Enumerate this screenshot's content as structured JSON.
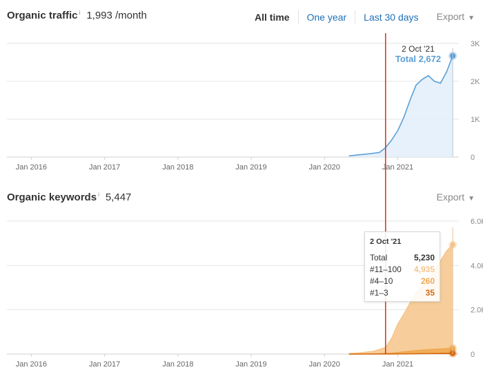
{
  "traffic": {
    "title": "Organic traffic",
    "info": "i",
    "value": "1,993 /month",
    "ranges": [
      "All time",
      "One year",
      "Last 30 days"
    ],
    "active_range": "All time",
    "export_label": "Export",
    "tooltip": {
      "date": "2 Oct '21",
      "label": "Total",
      "value": "2,672"
    }
  },
  "keywords": {
    "title": "Organic keywords",
    "info": "i",
    "value": "5,447",
    "export_label": "Export",
    "tooltip": {
      "date": "2 Oct '21",
      "rows": [
        {
          "label": "Total",
          "value": "5,230"
        },
        {
          "label": "#11–100",
          "value": "4,935"
        },
        {
          "label": "#4–10",
          "value": "260"
        },
        {
          "label": "#1–3",
          "value": "35"
        }
      ]
    }
  },
  "colors": {
    "traffic_line": "#5a9fd6",
    "traffic_fill": "#e3effb",
    "kw_11_100": "#f6c58a",
    "kw_4_10": "#f0a850",
    "kw_1_3": "#d66a10",
    "marker_line": "#d93a26",
    "grid": "#e6e6e6"
  },
  "chart_data": [
    {
      "type": "area",
      "title": "Organic traffic",
      "x_ticks": [
        "Jan 2016",
        "Jan 2017",
        "Jan 2018",
        "Jan 2019",
        "Jan 2020",
        "Jan 2021"
      ],
      "y_ticks": [
        "0",
        "1K",
        "2K",
        "3K"
      ],
      "ylim": [
        0,
        3000
      ],
      "x_range": [
        "2015-09",
        "2021-11"
      ],
      "grid": true,
      "series": [
        {
          "x": [
            "2020-05",
            "2020-06",
            "2020-08",
            "2020-10",
            "2020-11",
            "2020-12",
            "2021-01",
            "2021-02",
            "2021-03",
            "2021-04",
            "2021-05",
            "2021-06",
            "2021-07",
            "2021-08",
            "2021-09",
            "2021-10"
          ],
          "values": [
            30,
            50,
            80,
            120,
            250,
            450,
            700,
            1050,
            1500,
            1900,
            2050,
            2150,
            2000,
            1950,
            2250,
            2672
          ]
        }
      ]
    },
    {
      "type": "area",
      "title": "Organic keywords",
      "x_ticks": [
        "Jan 2016",
        "Jan 2017",
        "Jan 2018",
        "Jan 2019",
        "Jan 2020",
        "Jan 2021"
      ],
      "y_ticks": [
        "0",
        "2.0K",
        "4.0K",
        "6.0K"
      ],
      "ylim": [
        0,
        6000
      ],
      "x_range": [
        "2015-09",
        "2021-11"
      ],
      "grid": true,
      "series": [
        {
          "name": "#11–100",
          "x": [
            "2020-05",
            "2020-07",
            "2020-09",
            "2020-11",
            "2020-12",
            "2021-01",
            "2021-02",
            "2021-03",
            "2021-04",
            "2021-05",
            "2021-06",
            "2021-07",
            "2021-08",
            "2021-09",
            "2021-10"
          ],
          "values": [
            20,
            60,
            120,
            300,
            700,
            1350,
            1800,
            2300,
            2750,
            3050,
            3400,
            3800,
            4200,
            4650,
            4935
          ]
        },
        {
          "name": "#4–10",
          "x": [
            "2020-05",
            "2020-09",
            "2020-12",
            "2021-02",
            "2021-04",
            "2021-06",
            "2021-08",
            "2021-10"
          ],
          "values": [
            5,
            10,
            40,
            100,
            160,
            200,
            230,
            260
          ]
        },
        {
          "name": "#1–3",
          "x": [
            "2020-05",
            "2020-12",
            "2021-04",
            "2021-08",
            "2021-10"
          ],
          "values": [
            1,
            5,
            15,
            28,
            35
          ]
        }
      ]
    }
  ]
}
